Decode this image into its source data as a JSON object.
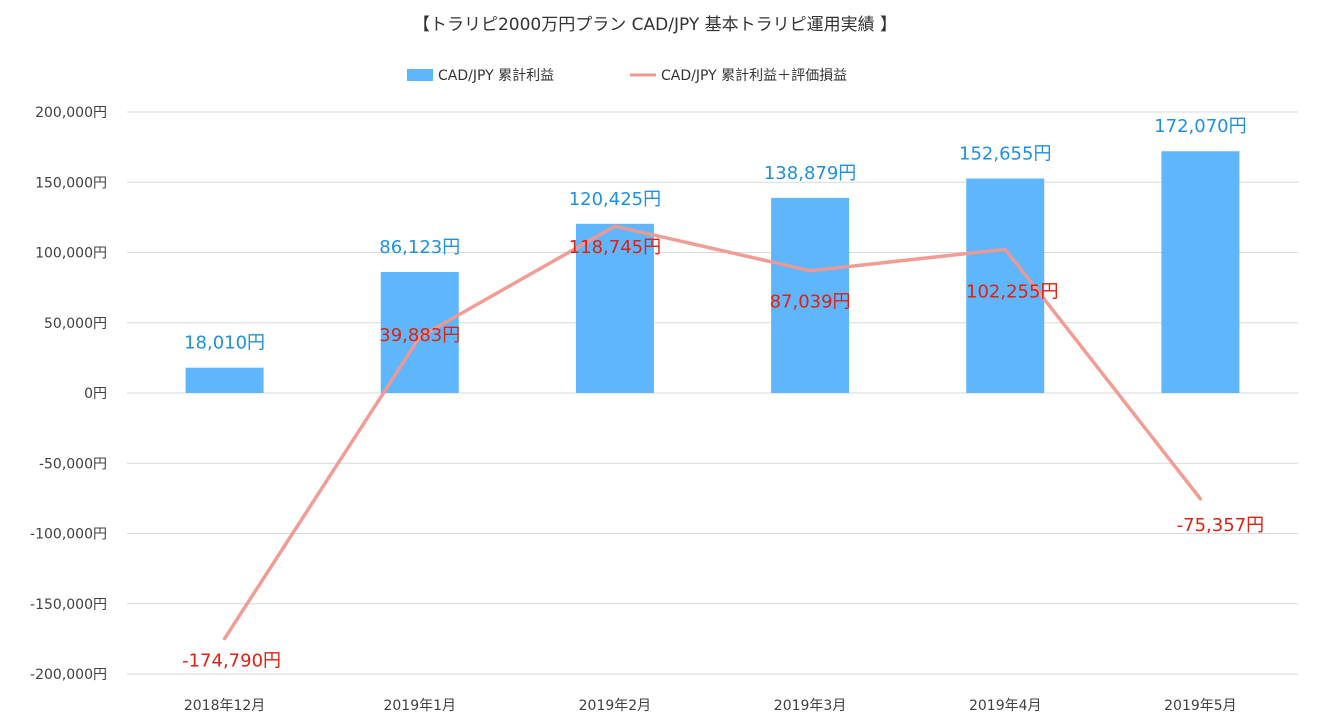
{
  "chart_data": {
    "type": "bar",
    "title": "【トラリピ2000万円プラン CAD/JPY 基本トラリピ運用実績 】",
    "categories": [
      "2018年12月",
      "2019年1月",
      "2019年2月",
      "2019年3月",
      "2019年4月",
      "2019年5月"
    ],
    "series": [
      {
        "name": "CAD/JPY 累計利益",
        "kind": "bar",
        "values": [
          18010,
          86123,
          120425,
          138879,
          152655,
          172070
        ],
        "labels": [
          "18,010円",
          "86,123円",
          "120,425円",
          "138,879円",
          "152,655円",
          "172,070円"
        ]
      },
      {
        "name": "CAD/JPY 累計利益＋評価損益",
        "kind": "line",
        "values": [
          -174790,
          39883,
          118745,
          87039,
          102255,
          -75357
        ],
        "labels": [
          "-174,790円",
          "39,883円",
          "118,745円",
          "87,039円",
          "102,255円",
          "-75,357円"
        ]
      }
    ],
    "ylim": [
      -200000,
      200000
    ],
    "yticks": [
      200000,
      150000,
      100000,
      50000,
      0,
      -50000,
      -100000,
      -150000,
      -200000
    ],
    "ytick_labels": [
      "200,000円",
      "150,000円",
      "100,000円",
      "50,000円",
      "0円",
      "-50,000円",
      "-100,000円",
      "-150,000円",
      "-200,000円"
    ],
    "grid": true,
    "legend_position": "top-center",
    "colors": {
      "bar": "#5eb6fd",
      "line": "#f09890",
      "bar_label": "#1f8fe0",
      "line_label": "#e02010",
      "grid": "#d9d9d9"
    }
  }
}
